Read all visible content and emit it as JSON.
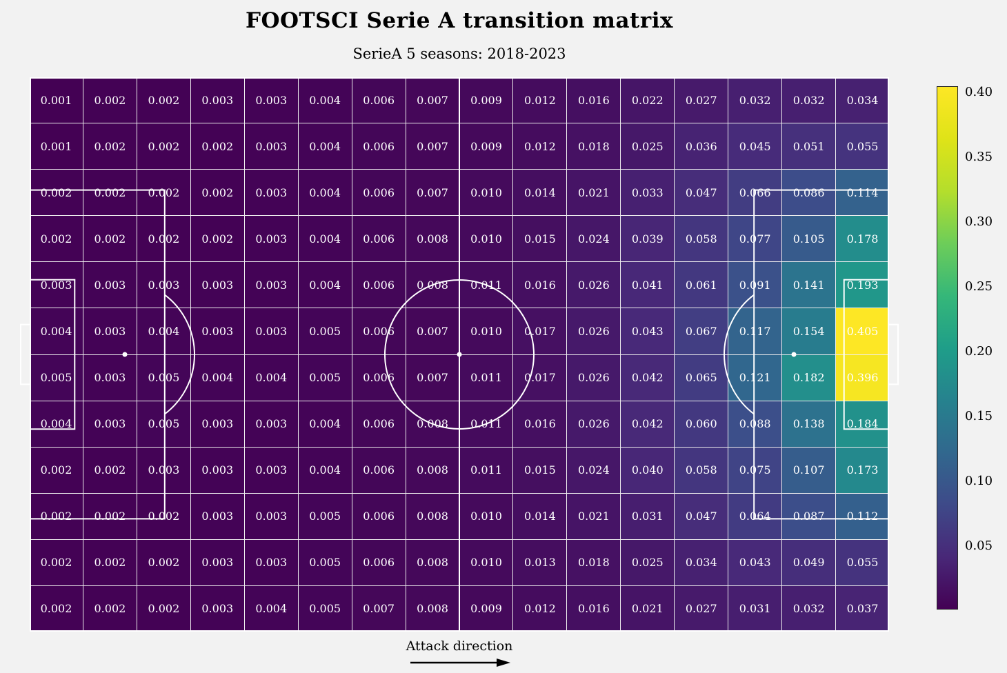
{
  "header": {
    "title": "FOOTSCI Serie A transition matrix",
    "subtitle": "SerieA 5 seasons: 2018-2023"
  },
  "footer": {
    "attack_label": "Attack direction"
  },
  "chart_data": {
    "type": "heatmap",
    "title": "FOOTSCI Serie A transition matrix",
    "subtitle": "SerieA 5 seasons: 2018-2023",
    "rows": 12,
    "cols": 16,
    "values": [
      [
        0.001,
        0.002,
        0.002,
        0.003,
        0.003,
        0.004,
        0.006,
        0.007,
        0.009,
        0.012,
        0.016,
        0.022,
        0.027,
        0.032,
        0.032,
        0.034
      ],
      [
        0.001,
        0.002,
        0.002,
        0.002,
        0.003,
        0.004,
        0.006,
        0.007,
        0.009,
        0.012,
        0.018,
        0.025,
        0.036,
        0.045,
        0.051,
        0.055
      ],
      [
        0.002,
        0.002,
        0.002,
        0.002,
        0.003,
        0.004,
        0.006,
        0.007,
        0.01,
        0.014,
        0.021,
        0.033,
        0.047,
        0.066,
        0.086,
        0.114
      ],
      [
        0.002,
        0.002,
        0.002,
        0.002,
        0.003,
        0.004,
        0.006,
        0.008,
        0.01,
        0.015,
        0.024,
        0.039,
        0.058,
        0.077,
        0.105,
        0.178
      ],
      [
        0.003,
        0.003,
        0.003,
        0.003,
        0.003,
        0.004,
        0.006,
        0.008,
        0.011,
        0.016,
        0.026,
        0.041,
        0.061,
        0.091,
        0.141,
        0.193
      ],
      [
        0.004,
        0.003,
        0.004,
        0.003,
        0.003,
        0.005,
        0.006,
        0.007,
        0.01,
        0.017,
        0.026,
        0.043,
        0.067,
        0.117,
        0.154,
        0.405
      ],
      [
        0.005,
        0.003,
        0.005,
        0.004,
        0.004,
        0.005,
        0.006,
        0.007,
        0.011,
        0.017,
        0.026,
        0.042,
        0.065,
        0.121,
        0.182,
        0.396
      ],
      [
        0.004,
        0.003,
        0.005,
        0.003,
        0.003,
        0.004,
        0.006,
        0.008,
        0.011,
        0.016,
        0.026,
        0.042,
        0.06,
        0.088,
        0.138,
        0.184
      ],
      [
        0.002,
        0.002,
        0.003,
        0.003,
        0.003,
        0.004,
        0.006,
        0.008,
        0.011,
        0.015,
        0.024,
        0.04,
        0.058,
        0.075,
        0.107,
        0.173
      ],
      [
        0.002,
        0.002,
        0.002,
        0.003,
        0.003,
        0.005,
        0.006,
        0.008,
        0.01,
        0.014,
        0.021,
        0.031,
        0.047,
        0.064,
        0.087,
        0.112
      ],
      [
        0.002,
        0.002,
        0.002,
        0.003,
        0.003,
        0.005,
        0.006,
        0.008,
        0.01,
        0.013,
        0.018,
        0.025,
        0.034,
        0.043,
        0.049,
        0.055
      ],
      [
        0.002,
        0.002,
        0.002,
        0.003,
        0.004,
        0.005,
        0.007,
        0.008,
        0.009,
        0.012,
        0.016,
        0.021,
        0.027,
        0.031,
        0.032,
        0.037
      ]
    ],
    "value_decimals": 3,
    "vmin": 0.001,
    "vmax": 0.405,
    "colormap": "viridis",
    "colorbar_ticks": [
      0.4,
      0.35,
      0.3,
      0.25,
      0.2,
      0.15,
      0.1,
      0.05
    ],
    "colorbar_tick_decimals": 2,
    "overlay": "soccer-pitch-markings",
    "annotation": "Attack direction",
    "legend_position": "right-colorbar",
    "grid": true
  },
  "colors": {
    "background": "#f2f2f2",
    "cell_text": "#ffffff",
    "pitch_lines": "#ffffff",
    "arrow": "#000000",
    "viridis_stops": [
      "#440154",
      "#482878",
      "#3e4a89",
      "#31688e",
      "#26828e",
      "#1f9e89",
      "#35b779",
      "#6dcd59",
      "#b4de2c",
      "#dfe318",
      "#fde725"
    ]
  }
}
